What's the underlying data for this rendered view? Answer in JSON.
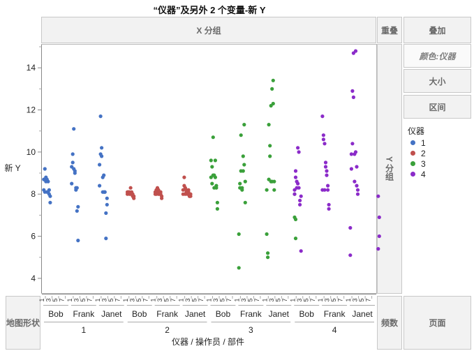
{
  "title": "“仪器”及另外 2 个变量-新 Y",
  "zones": {
    "x_group": "X 分组",
    "overlap": "重叠",
    "y_group": "Y 分组",
    "map_shape": "地图形状",
    "freq": "频数",
    "page": "页面"
  },
  "buttons": {
    "overlay": "叠加",
    "color": "颜色:仪器",
    "size": "大小",
    "interval": "区间"
  },
  "legend": {
    "title": "仪器",
    "items": [
      {
        "label": "1",
        "color": "#4472c4"
      },
      {
        "label": "2",
        "color": "#c0504d"
      },
      {
        "label": "3",
        "color": "#3aa03a"
      },
      {
        "label": "4",
        "color": "#8b2bc9"
      }
    ]
  },
  "chart_data": {
    "type": "scatter",
    "ylabel": "新 Y",
    "xlabel": "仪器 / 操作员 / 部件",
    "ylim": [
      3.3,
      15.1
    ],
    "yticks": [
      4,
      6,
      8,
      10,
      12,
      14
    ],
    "instruments": [
      "1",
      "2",
      "3",
      "4"
    ],
    "operators": [
      "Bob",
      "Frank",
      "Janet"
    ],
    "parts": [
      "1",
      "3",
      "5",
      "7"
    ],
    "series": [
      {
        "name": "1",
        "color": "#4472c4",
        "points": [
          [
            0,
            8.2
          ],
          [
            0,
            8.7
          ],
          [
            1,
            9.2
          ],
          [
            1,
            8.1
          ],
          [
            2,
            8.8
          ],
          [
            2,
            8.6
          ],
          [
            3,
            8.7
          ],
          [
            3,
            8.1
          ],
          [
            4,
            8.1
          ],
          [
            4,
            8.6
          ],
          [
            5,
            8.0
          ],
          [
            5,
            8.2
          ],
          [
            6,
            7.6
          ],
          [
            6,
            7.9
          ],
          [
            8,
            9.3
          ],
          [
            8,
            8.5
          ],
          [
            9,
            9.9
          ],
          [
            9,
            9.5
          ],
          [
            10,
            11.1
          ],
          [
            10,
            9.2
          ],
          [
            11,
            9.0
          ],
          [
            11,
            9.1
          ],
          [
            12,
            8.2
          ],
          [
            12,
            8.3
          ],
          [
            13,
            8.3
          ],
          [
            13,
            7.2
          ],
          [
            14,
            5.8
          ],
          [
            14,
            7.4
          ],
          [
            16,
            9.4
          ],
          [
            16,
            8.4
          ],
          [
            17,
            11.7
          ],
          [
            17,
            9.9
          ],
          [
            18,
            10.2
          ],
          [
            18,
            9.8
          ],
          [
            19,
            8.8
          ],
          [
            19,
            8.1
          ],
          [
            20,
            8.9
          ],
          [
            20,
            8.1
          ],
          [
            21,
            8.1
          ],
          [
            21,
            8.1
          ],
          [
            22,
            5.9
          ],
          [
            22,
            7.1
          ],
          [
            23,
            7.5
          ],
          [
            23,
            7.8
          ]
        ]
      },
      {
        "name": "2",
        "color": "#c0504d",
        "points": [
          [
            0,
            8.1
          ],
          [
            0,
            8.0
          ],
          [
            1,
            8.1
          ],
          [
            1,
            8.1
          ],
          [
            2,
            8.0
          ],
          [
            2,
            8.1
          ],
          [
            3,
            8.0
          ],
          [
            3,
            8.3
          ],
          [
            4,
            8.0
          ],
          [
            4,
            8.1
          ],
          [
            5,
            7.9
          ],
          [
            5,
            8.0
          ],
          [
            6,
            7.8
          ],
          [
            6,
            7.9
          ],
          [
            8,
            8.0
          ],
          [
            8,
            8.1
          ],
          [
            9,
            8.2
          ],
          [
            9,
            8.0
          ],
          [
            10,
            8.3
          ],
          [
            10,
            8.1
          ],
          [
            11,
            8.0
          ],
          [
            11,
            8.2
          ],
          [
            12,
            8.1
          ],
          [
            12,
            8.0
          ],
          [
            13,
            8.0
          ],
          [
            13,
            8.1
          ],
          [
            14,
            7.9
          ],
          [
            14,
            7.8
          ],
          [
            16,
            8.0
          ],
          [
            16,
            8.2
          ],
          [
            17,
            8.4
          ],
          [
            17,
            8.8
          ],
          [
            18,
            8.0
          ],
          [
            18,
            8.3
          ],
          [
            19,
            8.1
          ],
          [
            19,
            8.2
          ],
          [
            20,
            8.0
          ],
          [
            20,
            8.1
          ],
          [
            21,
            8.1
          ],
          [
            21,
            8.2
          ],
          [
            22,
            7.9
          ],
          [
            22,
            7.9
          ],
          [
            23,
            7.9
          ],
          [
            23,
            8.0
          ]
        ]
      },
      {
        "name": "3",
        "color": "#3aa03a",
        "points": [
          [
            0,
            9.6
          ],
          [
            0,
            8.8
          ],
          [
            1,
            9.3
          ],
          [
            1,
            8.5
          ],
          [
            2,
            10.7
          ],
          [
            2,
            8.9
          ],
          [
            3,
            8.9
          ],
          [
            3,
            8.3
          ],
          [
            4,
            9.6
          ],
          [
            4,
            8.8
          ],
          [
            5,
            8.4
          ],
          [
            5,
            8.3
          ],
          [
            6,
            7.6
          ],
          [
            6,
            7.3
          ],
          [
            8,
            6.1
          ],
          [
            8,
            4.5
          ],
          [
            9,
            8.5
          ],
          [
            9,
            8.3
          ],
          [
            10,
            10.8
          ],
          [
            10,
            9.1
          ],
          [
            11,
            8.3
          ],
          [
            11,
            8.2
          ],
          [
            12,
            9.8
          ],
          [
            12,
            9.1
          ],
          [
            13,
            11.3
          ],
          [
            13,
            9.4
          ],
          [
            14,
            8.6
          ],
          [
            14,
            7.6
          ],
          [
            16,
            6.1
          ],
          [
            16,
            8.2
          ],
          [
            17,
            5.2
          ],
          [
            17,
            5.0
          ],
          [
            18,
            11.3
          ],
          [
            18,
            8.7
          ],
          [
            19,
            10.3
          ],
          [
            19,
            9.8
          ],
          [
            20,
            12.2
          ],
          [
            20,
            8.6
          ],
          [
            21,
            13.0
          ],
          [
            21,
            8.6
          ],
          [
            22,
            13.4
          ],
          [
            22,
            12.3
          ],
          [
            23,
            8.6
          ],
          [
            23,
            8.2
          ],
          [
            24,
            8.0
          ],
          [
            24,
            6.9
          ],
          [
            25,
            5.9
          ],
          [
            25,
            6.8
          ]
        ]
      },
      {
        "name": "4",
        "color": "#8b2bc9",
        "points": [
          [
            0,
            8.2
          ],
          [
            0,
            8.0
          ],
          [
            1,
            9.1
          ],
          [
            1,
            8.8
          ],
          [
            2,
            8.3
          ],
          [
            2,
            8.6
          ],
          [
            3,
            10.2
          ],
          [
            3,
            8.5
          ],
          [
            4,
            10.0
          ],
          [
            4,
            8.3
          ],
          [
            5,
            7.7
          ],
          [
            5,
            7.5
          ],
          [
            6,
            7.9
          ],
          [
            6,
            5.3
          ],
          [
            8,
            11.7
          ],
          [
            8,
            8.2
          ],
          [
            9,
            10.8
          ],
          [
            9,
            10.6
          ],
          [
            10,
            10.4
          ],
          [
            10,
            8.2
          ],
          [
            11,
            9.3
          ],
          [
            11,
            9.5
          ],
          [
            12,
            8.9
          ],
          [
            12,
            9.1
          ],
          [
            13,
            8.4
          ],
          [
            13,
            8.2
          ],
          [
            14,
            7.5
          ],
          [
            14,
            7.3
          ],
          [
            16,
            6.4
          ],
          [
            16,
            5.1
          ],
          [
            17,
            9.9
          ],
          [
            17,
            9.2
          ],
          [
            18,
            12.9
          ],
          [
            18,
            10.4
          ],
          [
            19,
            12.6
          ],
          [
            19,
            14.7
          ],
          [
            20,
            9.9
          ],
          [
            20,
            8.6
          ],
          [
            21,
            14.8
          ],
          [
            21,
            10.0
          ],
          [
            22,
            9.3
          ],
          [
            22,
            8.4
          ],
          [
            23,
            8.2
          ],
          [
            23,
            8.0
          ],
          [
            24,
            5.4
          ],
          [
            24,
            7.9
          ],
          [
            25,
            6.0
          ],
          [
            25,
            6.9
          ]
        ]
      }
    ]
  }
}
